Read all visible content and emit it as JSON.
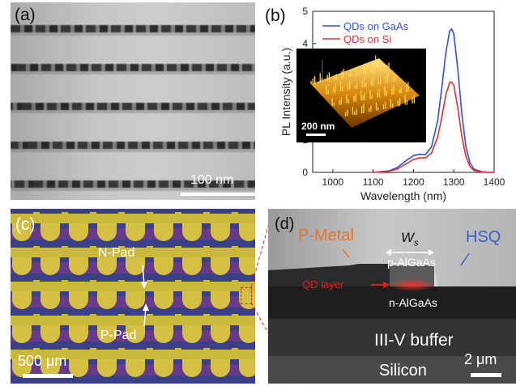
{
  "panel_a": {
    "label": "(a)",
    "scale_label": "100 nm",
    "stripe_count": 5
  },
  "panel_b": {
    "label": "(b)",
    "inset_scale_label": "200 nm"
  },
  "chart_data": {
    "type": "line",
    "xlabel": "Wavelength (nm)",
    "ylabel": "PL Intensity (a.u.)",
    "xlim": [
      950,
      1400
    ],
    "ylim": [
      0,
      5
    ],
    "xticks": [
      1000,
      1100,
      1200,
      1300,
      1400
    ],
    "yticks": [
      0,
      1,
      2,
      3,
      4,
      5
    ],
    "grid": false,
    "legend": "top-right",
    "series": [
      {
        "name": "QDs on GaAs",
        "color": "#3050e0",
        "x": [
          1100,
          1140,
          1160,
          1180,
          1200,
          1215,
          1230,
          1245,
          1260,
          1270,
          1280,
          1290,
          1295,
          1300,
          1310,
          1320,
          1330,
          1340,
          1350,
          1370,
          1390
        ],
        "y": [
          0.0,
          0.05,
          0.15,
          0.35,
          0.52,
          0.56,
          0.55,
          0.8,
          1.6,
          2.6,
          3.7,
          4.4,
          4.45,
          4.3,
          3.2,
          1.8,
          0.8,
          0.3,
          0.1,
          0.02,
          0.0
        ]
      },
      {
        "name": "QDs on Si",
        "color": "#e03030",
        "x": [
          1100,
          1140,
          1160,
          1180,
          1200,
          1215,
          1230,
          1245,
          1260,
          1270,
          1280,
          1290,
          1295,
          1300,
          1310,
          1320,
          1330,
          1340,
          1350,
          1370,
          1390
        ],
        "y": [
          0.0,
          0.04,
          0.1,
          0.25,
          0.4,
          0.45,
          0.45,
          0.6,
          1.1,
          1.7,
          2.4,
          2.8,
          2.8,
          2.7,
          2.0,
          1.1,
          0.5,
          0.18,
          0.06,
          0.01,
          0.0
        ]
      }
    ]
  },
  "panel_c": {
    "label": "(c)",
    "n_pad_label": "N-Pad",
    "p_pad_label": "P-Pad",
    "scale_label": "500 μm",
    "pad_rows": 5
  },
  "panel_d": {
    "label": "(d)",
    "p_metal_label": "P-Metal",
    "width_label": "W",
    "width_sub": "s",
    "hsq_label": "HSQ",
    "p_layer_label": "p-AlGaAs",
    "qd_layer_label": "QD layer",
    "n_layer_label": "n-AlGaAs",
    "buffer_label": "III-V buffer",
    "silicon_label": "Silicon",
    "scale_label": "2 μm",
    "colors": {
      "p_metal": "#e8732a",
      "hsq": "#3a5fc8",
      "qd_layer": "#e02020"
    }
  }
}
